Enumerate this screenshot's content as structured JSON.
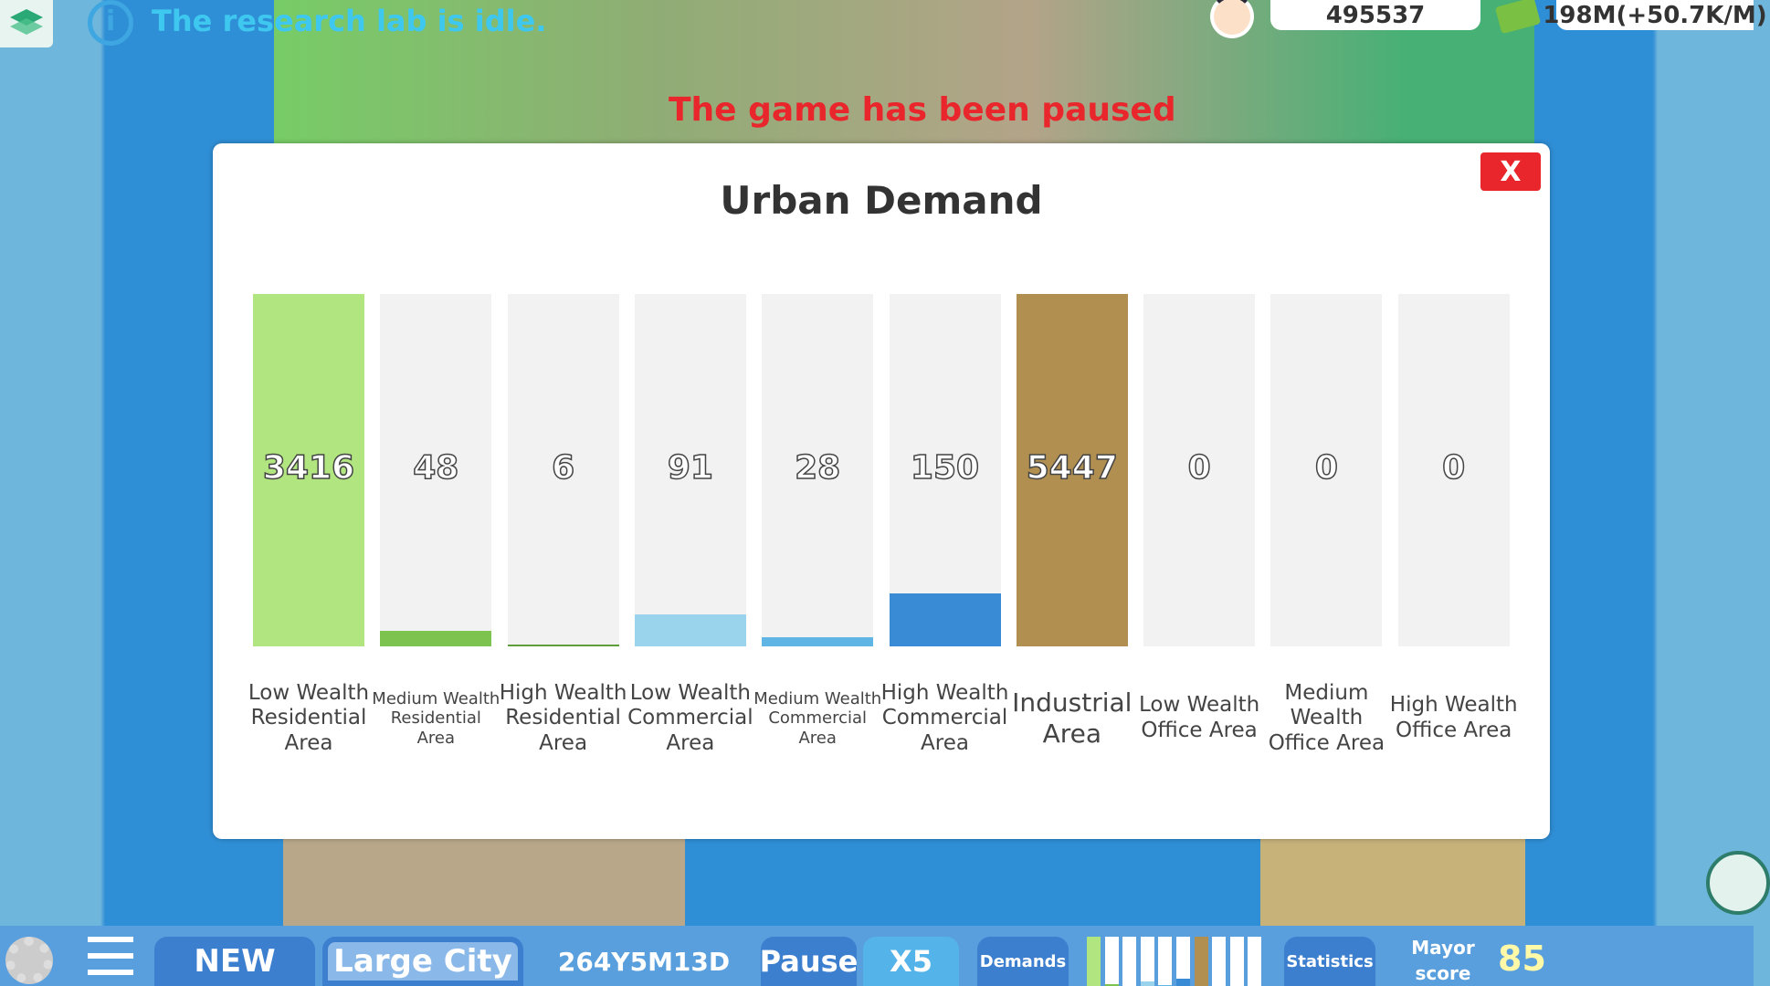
{
  "top": {
    "research_status": "The research lab is idle.",
    "paused_notice": "The game has been paused",
    "population": "495537",
    "money": "198M(+50.7K/M)"
  },
  "modal": {
    "title": "Urban Demand",
    "close_label": "X",
    "bars": [
      {
        "label": "Low Wealth Residential Area",
        "value": "3416",
        "fill": 1.0,
        "color": "#b0e57f",
        "size": "big"
      },
      {
        "label": "Medium Wealth Residential Area",
        "value": "48",
        "fill": 0.045,
        "color": "#7cc34f",
        "size": "small"
      },
      {
        "label": "High Wealth Residential Area",
        "value": "6",
        "fill": 0.006,
        "color": "#5f9e3a",
        "size": "big"
      },
      {
        "label": "Low Wealth Commercial Area",
        "value": "91",
        "fill": 0.09,
        "color": "#9ad3ec",
        "size": "big"
      },
      {
        "label": "Medium Wealth Commercial Area",
        "value": "28",
        "fill": 0.025,
        "color": "#5fb6e4",
        "size": "small"
      },
      {
        "label": "High Wealth Commercial Area",
        "value": "150",
        "fill": 0.15,
        "color": "#3a8bd6",
        "size": "big"
      },
      {
        "label": "Industrial Area",
        "value": "5447",
        "fill": 1.0,
        "color": "#b08f50",
        "size": "xl"
      },
      {
        "label": "Low Wealth Office Area",
        "value": "0",
        "fill": 0,
        "color": "#888888",
        "size": "big"
      },
      {
        "label": "Medium Wealth Office Area",
        "value": "0",
        "fill": 0,
        "color": "#888888",
        "size": "big"
      },
      {
        "label": "High Wealth Office Area",
        "value": "0",
        "fill": 0,
        "color": "#888888",
        "size": "big"
      }
    ]
  },
  "bottom": {
    "new_label": "NEW",
    "city_label": "Large City",
    "date": "264Y5M13D",
    "pause_label": "Pause",
    "speed_label": "X5",
    "demands_label": "Demands",
    "statistics_label": "Statistics",
    "mayor_label": "Mayor score",
    "mayor_score": "85"
  }
}
